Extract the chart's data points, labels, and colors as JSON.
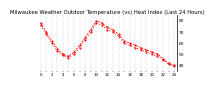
{
  "title": "Milwaukee Weather Outdoor Temperature (vs) Heat Index (Last 24 Hours)",
  "title_fontsize": 3.8,
  "background_color": "#ffffff",
  "line_color": "#ff0000",
  "dot_color": "#000000",
  "temp_values": [
    78,
    70,
    62,
    55,
    50,
    48,
    52,
    58,
    65,
    72,
    80,
    78,
    74,
    72,
    68,
    62,
    60,
    58,
    56,
    54,
    52,
    50,
    46,
    42,
    40
  ],
  "heat_values": [
    76,
    68,
    60,
    53,
    49,
    47,
    50,
    56,
    63,
    70,
    78,
    76,
    72,
    70,
    66,
    60,
    58,
    56,
    54,
    52,
    50,
    48,
    45,
    41,
    39
  ],
  "ylim": [
    35,
    85
  ],
  "yticks": [
    40,
    50,
    60,
    70,
    80
  ],
  "y_labels": [
    "40",
    "50",
    "60",
    "70",
    "80"
  ],
  "ylabel_fontsize": 3.2,
  "xlabel_fontsize": 2.8,
  "grid_color": "#999999",
  "xtick_step": 2,
  "n_points": 25
}
